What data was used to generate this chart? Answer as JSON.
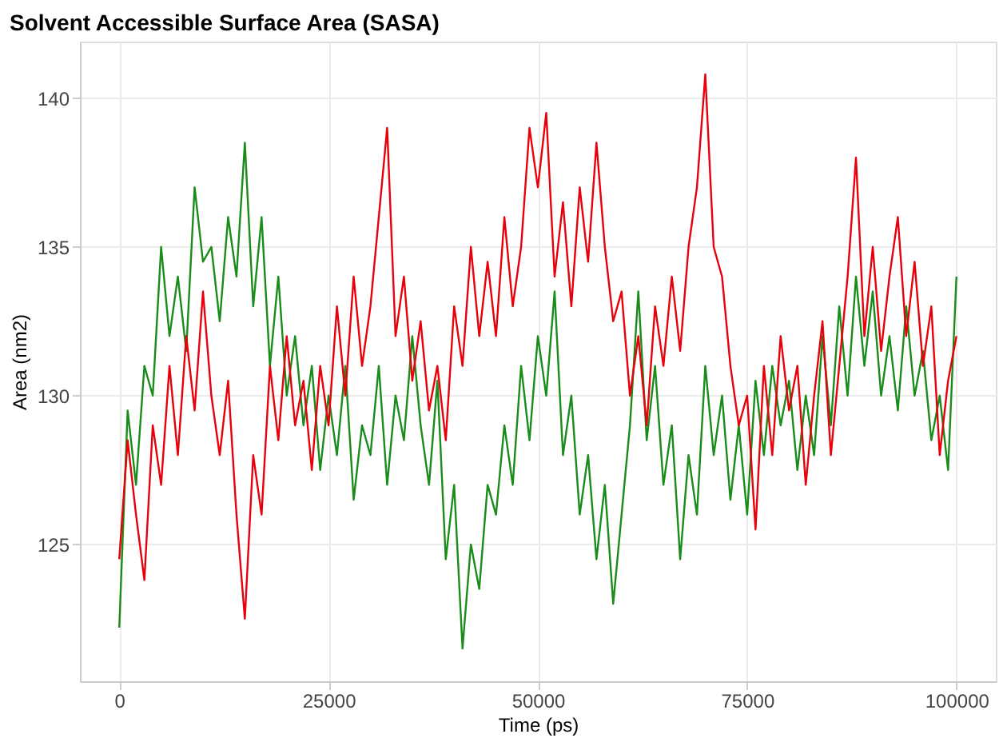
{
  "chart_data": {
    "type": "line",
    "title": "Solvent Accessible Surface Area (SASA)",
    "xlabel": "Time (ps)",
    "ylabel": "Area (nm2)",
    "x": [
      0,
      1000,
      2000,
      3000,
      4000,
      5000,
      6000,
      7000,
      8000,
      9000,
      10000,
      11000,
      12000,
      13000,
      14000,
      15000,
      16000,
      17000,
      18000,
      19000,
      20000,
      21000,
      22000,
      23000,
      24000,
      25000,
      26000,
      27000,
      28000,
      29000,
      30000,
      31000,
      32000,
      33000,
      34000,
      35000,
      36000,
      37000,
      38000,
      39000,
      40000,
      41000,
      42000,
      43000,
      44000,
      45000,
      46000,
      47000,
      48000,
      49000,
      50000,
      51000,
      52000,
      53000,
      54000,
      55000,
      56000,
      57000,
      58000,
      59000,
      60000,
      61000,
      62000,
      63000,
      64000,
      65000,
      66000,
      67000,
      68000,
      69000,
      70000,
      71000,
      72000,
      73000,
      74000,
      75000,
      76000,
      77000,
      78000,
      79000,
      80000,
      81000,
      82000,
      83000,
      84000,
      85000,
      86000,
      87000,
      88000,
      89000,
      90000,
      91000,
      92000,
      93000,
      94000,
      95000,
      96000,
      97000,
      98000,
      99000,
      100000
    ],
    "series": [
      {
        "color": "#1a8c1a",
        "values": [
          122.2,
          129.5,
          127,
          131,
          130,
          135,
          132,
          134,
          131.5,
          137,
          134.5,
          135,
          132.5,
          136,
          134,
          138.5,
          133,
          136,
          131,
          134,
          130,
          132,
          129,
          131,
          127.5,
          130,
          128,
          131,
          126.5,
          129,
          128,
          131,
          127,
          130,
          128.5,
          132,
          129,
          127,
          130.5,
          124.5,
          127,
          121.5,
          125,
          123.5,
          127,
          126,
          129,
          127,
          131,
          128.5,
          132,
          130,
          133.5,
          128,
          130,
          126,
          128,
          124.5,
          127,
          123,
          126,
          129,
          133.5,
          128.5,
          131,
          127,
          129,
          124.5,
          128,
          126,
          131,
          128,
          130,
          126.5,
          129,
          126,
          130.5,
          128,
          131,
          129,
          130.5,
          127.5,
          130,
          128,
          132,
          129,
          133,
          130,
          134,
          131,
          133.5,
          130,
          132,
          129.5,
          133,
          130,
          131.5,
          128.5,
          130,
          127.5,
          134
        ]
      },
      {
        "color": "#e8000b",
        "values": [
          124.5,
          128.5,
          126,
          123.8,
          129,
          127,
          131,
          128,
          132,
          129.5,
          133.5,
          130,
          128,
          130.5,
          126,
          122.5,
          128,
          126,
          131,
          128.5,
          132,
          129,
          130.5,
          127.5,
          131,
          129,
          133,
          130,
          134,
          131,
          133,
          136,
          139,
          132,
          134,
          130.5,
          132.5,
          129.5,
          131,
          128.5,
          133,
          131,
          135,
          132,
          134.5,
          132,
          136,
          133,
          135,
          139,
          137,
          139.5,
          134,
          136.5,
          133,
          137,
          134.5,
          138.5,
          135,
          132.5,
          133.5,
          130,
          132,
          129,
          133,
          131,
          134,
          131.5,
          135,
          137,
          140.8,
          135,
          134,
          131,
          129,
          130,
          125.5,
          131,
          128,
          132,
          129.5,
          131,
          127,
          130,
          132.5,
          128,
          131,
          134,
          138,
          132,
          135,
          131.5,
          134,
          136,
          132,
          134.5,
          131,
          133,
          128,
          130.5,
          132
        ]
      }
    ],
    "xlim": [
      -4700,
      104700
    ],
    "xticks": [
      0,
      25000,
      50000,
      75000,
      100000
    ],
    "ylim": [
      120.4,
      141.9
    ],
    "yticks": [
      125,
      130,
      135,
      140
    ],
    "grid": true,
    "legend": false,
    "marker": "none",
    "line_style": "solid"
  }
}
